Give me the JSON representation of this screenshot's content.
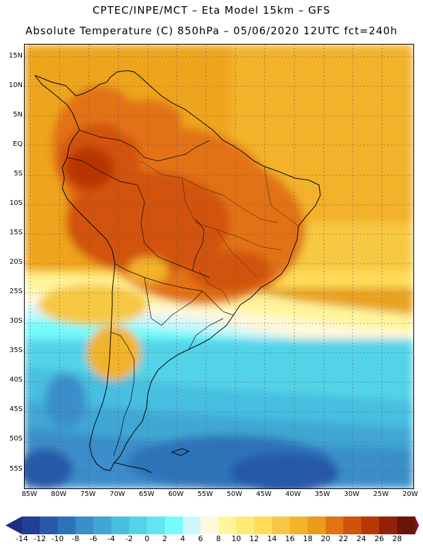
{
  "header": {
    "line1": "CPTEC/INPE/MCT –  Eta Model 15km – GFS",
    "line2": "Absolute Temperature (C) 850hPa – 05/06/2020 12UTC fct=240h"
  },
  "map": {
    "lat_labels": [
      "15N",
      "10N",
      "5N",
      "EQ",
      "5S",
      "10S",
      "15S",
      "20S",
      "25S",
      "30S",
      "35S",
      "40S",
      "45S",
      "50S",
      "55S"
    ],
    "lon_labels": [
      "85W",
      "80W",
      "75W",
      "70W",
      "65W",
      "60W",
      "55W",
      "50W",
      "45W",
      "40W",
      "35W",
      "30W",
      "25W",
      "20W"
    ]
  },
  "colorbar": {
    "labels": [
      "-14",
      "-12",
      "-10",
      "-8",
      "-6",
      "-4",
      "-2",
      "0",
      "2",
      "4",
      "6",
      "8",
      "10",
      "12",
      "14",
      "16",
      "18",
      "20",
      "22",
      "24",
      "26",
      "28"
    ],
    "colors": [
      "#1f3f93",
      "#285aa8",
      "#2e73b8",
      "#3a8ec9",
      "#3fa7d4",
      "#46bfe0",
      "#52d3e8",
      "#63e5f1",
      "#74fbfb",
      "#cdf6fb",
      "#fff8dc",
      "#fff59c",
      "#ffe978",
      "#ffdd5a",
      "#f7c843",
      "#f2b32b",
      "#eb9a1d",
      "#e27212",
      "#d2520b",
      "#b93606",
      "#922108",
      "#6b1408"
    ],
    "low_arrow_color": "#1c2f7e",
    "high_arrow_color": "#8c0c2a"
  }
}
